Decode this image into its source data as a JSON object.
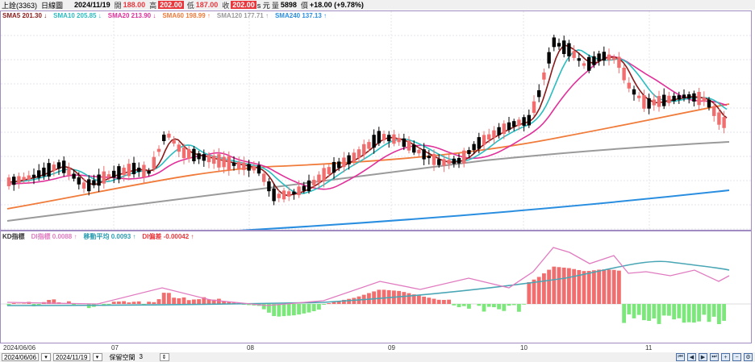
{
  "header": {
    "stock": "上詮(3363)",
    "period": "日線圖",
    "date": "2024/11/19",
    "open_label": "開",
    "open": "188.00",
    "high_label": "高",
    "high": "202.00",
    "low_label": "低",
    "low": "187.00",
    "close_label": "收",
    "close": "202.00",
    "unit": "s 元",
    "vol_label": "量",
    "volume": "5898",
    "change_label": "價",
    "change": "+18.00 (+9.78%)"
  },
  "ma_legend": [
    {
      "text": "SMA5 201.30",
      "arrow": "↓",
      "color": "#8b1a1a"
    },
    {
      "text": "SMA10 205.85",
      "arrow": "↓",
      "color": "#2bbcc0"
    },
    {
      "text": "SMA20 213.90",
      "arrow": "↓",
      "color": "#e0309a"
    },
    {
      "text": "SMA60 198.99",
      "arrow": "↑",
      "color": "#f07b3a"
    },
    {
      "text": "SMA120 177.71",
      "arrow": "↑",
      "color": "#9a9a9a"
    },
    {
      "text": "SMA240 137.13",
      "arrow": "↑",
      "color": "#2a8ee0"
    }
  ],
  "ind_legend": [
    {
      "text": "KD指標",
      "color": "#333"
    },
    {
      "text": "DI指標 0.0088",
      "arrow": "↑",
      "color": "#e07bc0"
    },
    {
      "text": "移動平均 0.0093",
      "arrow": "↑",
      "color": "#2a9bb0"
    },
    {
      "text": "DI偏差 -0.00042",
      "arrow": "↑",
      "color": "#e8383d"
    }
  ],
  "xaxis": [
    "2024/06/06",
    "07",
    "08",
    "09",
    "10",
    "11"
  ],
  "bottom": {
    "start": "2024/06/06",
    "end": "2024/11/19",
    "keep_label": "保留空間",
    "keep_value": "3"
  },
  "colors": {
    "up": "#f26d6d",
    "down": "#000000",
    "hist_pos": "#f26d6d",
    "hist_neg": "#7ce87c"
  }
}
